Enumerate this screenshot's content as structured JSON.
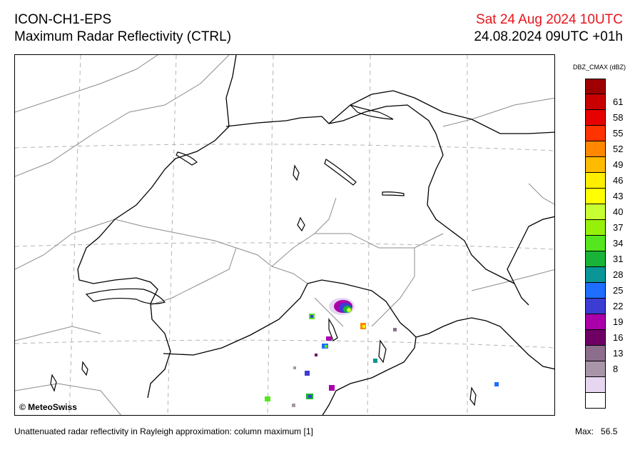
{
  "header": {
    "model": "ICON-CH1-EPS",
    "field": "Maximum Radar Reflectivity (CTRL)",
    "valid_time": "Sat 24 Aug 2024 10UTC",
    "run_time": "24.08.2024 09UTC +01h"
  },
  "map": {
    "copyright": "© MeteoSwiss"
  },
  "legend": {
    "title": "DBZ_CMAX  (dBZ)",
    "bins": [
      {
        "color": "#9e0000",
        "label": ""
      },
      {
        "color": "#c80000",
        "label": "61"
      },
      {
        "color": "#e60000",
        "label": "58"
      },
      {
        "color": "#ff3300",
        "label": "55"
      },
      {
        "color": "#ff8800",
        "label": "52"
      },
      {
        "color": "#ffbb00",
        "label": "49"
      },
      {
        "color": "#ffee00",
        "label": "46"
      },
      {
        "color": "#ffff00",
        "label": "43"
      },
      {
        "color": "#c8ff32",
        "label": "40"
      },
      {
        "color": "#96f00a",
        "label": "37"
      },
      {
        "color": "#55e61e",
        "label": "34"
      },
      {
        "color": "#19b437",
        "label": "31"
      },
      {
        "color": "#0a9696",
        "label": "28"
      },
      {
        "color": "#1e6eff",
        "label": "25"
      },
      {
        "color": "#3c3cd2",
        "label": "22"
      },
      {
        "color": "#aa00aa",
        "label": "19"
      },
      {
        "color": "#6e0064",
        "label": "16"
      },
      {
        "color": "#8c6e8c",
        "label": "13"
      },
      {
        "color": "#a896a8",
        "label": "8"
      },
      {
        "color": "#e6d6f0",
        "label": ""
      },
      {
        "color": "#ffffff",
        "label": ""
      }
    ]
  },
  "footer": {
    "description": "Unattenuated radar reflectivity in Rayleigh approximation: column maximum [1]",
    "max_label": "Max:",
    "max_value": "56.5"
  }
}
